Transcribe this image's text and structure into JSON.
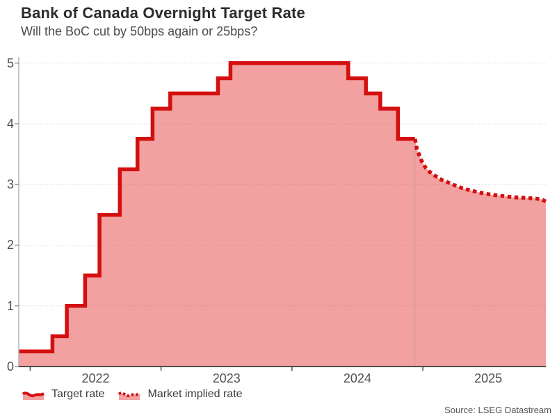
{
  "header": {
    "title": "Bank of Canada Overnight Target Rate",
    "subtitle": "Will the BoC cut by 50bps again or 25bps?"
  },
  "source": "Source: LSEG Datastream",
  "legend": [
    {
      "label": "Target rate",
      "style": "solid"
    },
    {
      "label": "Market implied rate",
      "style": "dotted"
    }
  ],
  "colors": {
    "line_red": "#d40f0f",
    "fill_pink": "#f2a0a0",
    "grid": "#6e6e6e",
    "axis_bottom": "#4d4d4d",
    "axis_left": "#b3b3b3",
    "tick_dark": "#4d4d4d",
    "tick_light": "#999999",
    "divider": "#9a9a9a",
    "text_dark": "#2c2c2c",
    "text_mid": "#4a4a4a"
  },
  "chart_data": {
    "type": "area",
    "title": "Bank of Canada Overnight Target Rate",
    "subtitle": "Will the BoC cut by 50bps again or 25bps?",
    "xlabel": "",
    "ylabel": "",
    "x_axis": {
      "tick_years": [
        2022,
        2023,
        2024,
        2025
      ],
      "min": 2021.913,
      "max": 2025.94
    },
    "y_axis": {
      "ticks": [
        0,
        1,
        2,
        3,
        4,
        5
      ],
      "min": 0,
      "max": 5.1,
      "grid": true
    },
    "legend_position": "bottom",
    "series": [
      {
        "name": "Target rate",
        "style": "solid",
        "step": true,
        "points": [
          [
            2021.913,
            0.25
          ],
          [
            2022.17,
            0.5
          ],
          [
            2022.28,
            1.0
          ],
          [
            2022.42,
            1.5
          ],
          [
            2022.53,
            2.5
          ],
          [
            2022.685,
            3.25
          ],
          [
            2022.82,
            3.75
          ],
          [
            2022.935,
            4.25
          ],
          [
            2023.07,
            4.5
          ],
          [
            2023.435,
            4.75
          ],
          [
            2023.53,
            5.0
          ],
          [
            2024.43,
            4.75
          ],
          [
            2024.565,
            4.5
          ],
          [
            2024.675,
            4.25
          ],
          [
            2024.81,
            3.75
          ],
          [
            2024.94,
            3.75
          ]
        ]
      },
      {
        "name": "Market implied rate",
        "style": "dotted",
        "step": false,
        "points": [
          [
            2024.94,
            3.75
          ],
          [
            2024.955,
            3.58
          ],
          [
            2024.975,
            3.47
          ],
          [
            2024.995,
            3.37
          ],
          [
            2025.02,
            3.28
          ],
          [
            2025.05,
            3.21
          ],
          [
            2025.09,
            3.15
          ],
          [
            2025.13,
            3.09
          ],
          [
            2025.185,
            3.04
          ],
          [
            2025.24,
            2.99
          ],
          [
            2025.3,
            2.94
          ],
          [
            2025.37,
            2.9
          ],
          [
            2025.45,
            2.86
          ],
          [
            2025.53,
            2.83
          ],
          [
            2025.61,
            2.81
          ],
          [
            2025.69,
            2.79
          ],
          [
            2025.77,
            2.78
          ],
          [
            2025.85,
            2.77
          ],
          [
            2025.9,
            2.76
          ],
          [
            2025.94,
            2.72
          ]
        ]
      }
    ],
    "forecast_divider_x": 2024.94
  }
}
